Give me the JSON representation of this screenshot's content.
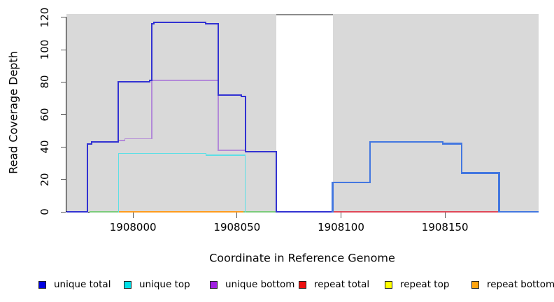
{
  "chart_data": {
    "type": "line",
    "subtype": "step-coverage-plot",
    "xlabel": "Coordinate in Reference Genome",
    "ylabel": "Read Coverage Depth",
    "xlim": [
      1907968,
      1908195
    ],
    "ylim": [
      0,
      122
    ],
    "x_ticks": [
      "1908000",
      "1908050",
      "1908100",
      "1908150"
    ],
    "y_ticks": [
      "0",
      "20",
      "40",
      "60",
      "80",
      "100",
      "120"
    ],
    "grid": "off",
    "panel_background": "#ffffff",
    "shaded_regions": [
      {
        "name": "left-gray-region",
        "from": 1907968,
        "to": 1908069,
        "color": "#d9d9d9"
      },
      {
        "name": "right-gray-region",
        "from": 1908096,
        "to": 1908195,
        "color": "#d9d9d9"
      }
    ],
    "gap_top_bar": {
      "from": 1908069,
      "to": 1908096,
      "value": 122,
      "color": "#8c8c8c"
    },
    "series": [
      {
        "name": "zero-overlap-left",
        "color": "#7bcb7b",
        "width": 1.4,
        "start": 1907979,
        "base": 0,
        "steps": [],
        "end": 1907993
      },
      {
        "name": "zero-overlap-right",
        "color": "#7bcb7b",
        "width": 1.4,
        "start": 1908053,
        "base": 0,
        "steps": [],
        "end": 1908069
      },
      {
        "name": "repeat-bottom",
        "color": "#ff9c1e",
        "width": 2,
        "start": 1907993,
        "base": 0,
        "steps": [],
        "end": 1908053
      },
      {
        "name": "repeat-total",
        "color": "#e04858",
        "width": 1.4,
        "start": 1908096,
        "base": 0,
        "steps": [],
        "end": 1908176
      },
      {
        "name": "unique-top",
        "color": "#5cdfe6",
        "width": 1.4,
        "start": 1907993,
        "base": 0,
        "steps": [
          [
            1907993,
            36
          ],
          [
            1908035,
            35
          ],
          [
            1908054,
            0
          ]
        ],
        "end": 1908054
      },
      {
        "name": "unique-bottom",
        "color": "#b289d8",
        "width": 1.5,
        "start": 1907968,
        "base": 0,
        "steps": [
          [
            1907978,
            42
          ],
          [
            1907980,
            43
          ],
          [
            1907993,
            44
          ],
          [
            1907996,
            45
          ],
          [
            1908009,
            81
          ],
          [
            1908041,
            38
          ],
          [
            1908054,
            37
          ],
          [
            1908069,
            0
          ]
        ],
        "end": 1908069
      },
      {
        "name": "unique-total-left-block",
        "color": "#3232d2",
        "width": 2,
        "start": 1907968,
        "base": 0,
        "steps": [
          [
            1907978,
            42
          ],
          [
            1907980,
            43
          ],
          [
            1907993,
            80
          ],
          [
            1908008,
            81
          ],
          [
            1908009,
            116
          ],
          [
            1908010,
            117
          ],
          [
            1908035,
            116
          ],
          [
            1908041,
            72
          ],
          [
            1908052,
            71
          ],
          [
            1908054,
            37
          ],
          [
            1908069,
            0
          ]
        ],
        "end": 1908096
      },
      {
        "name": "unique-total-right-block",
        "color": "#4377e0",
        "width": 2.4,
        "start": 1908096,
        "base": 0,
        "steps": [
          [
            1908096,
            18
          ],
          [
            1908114,
            43
          ],
          [
            1908149,
            42
          ],
          [
            1908158,
            24
          ],
          [
            1908176,
            0
          ]
        ],
        "end": 1908195
      }
    ],
    "legend": [
      {
        "label": "unique total",
        "color": "#0000e0"
      },
      {
        "label": "unique top",
        "color": "#00e0e8"
      },
      {
        "label": "unique bottom",
        "color": "#a020e0"
      },
      {
        "label": "repeat total",
        "color": "#ee1010"
      },
      {
        "label": "repeat top",
        "color": "#ffff00"
      },
      {
        "label": "repeat bottom",
        "color": "#ffa510"
      }
    ],
    "legend_position": "bottom"
  }
}
